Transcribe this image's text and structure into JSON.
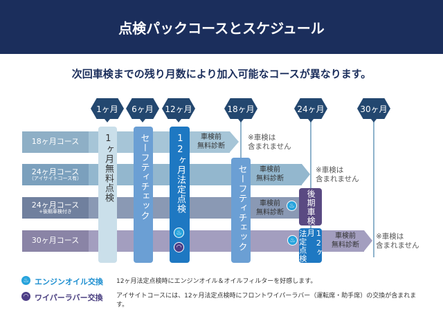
{
  "header": {
    "title": "点検パックコースとスケジュール"
  },
  "subtitle": "次回車検までの残り月数により加入可能なコースが異なります。",
  "months": [
    "1ヶ月",
    "6ヶ月",
    "12ヶ月",
    "18ヶ月",
    "24ヶ月",
    "30ヶ月"
  ],
  "courses": [
    {
      "label": "18ヶ月コース",
      "sub": ""
    },
    {
      "label": "24ヶ月コース",
      "sub": "（アイサイトコース有）"
    },
    {
      "label": "24ヶ月コース",
      "sub": "+後期車検付き"
    },
    {
      "label": "30ヶ月コース",
      "sub": ""
    }
  ],
  "columns": {
    "free1": "1ヶ月無料点検",
    "safety6": "セーフティチェック",
    "legal12": "12ヶ月法定点検",
    "safety18": "セーフティチェック",
    "late_inspection": "後期車検",
    "legal12_small_a": "法定点検",
    "legal12_small_b": "12ヶ月"
  },
  "diag": "車検前\n無料診断",
  "diag_line1": "車検前",
  "diag_line2": "無料診断",
  "note_line1": "※車検は",
  "note_line2": "含まれません",
  "legend": [
    {
      "icon": "oil-can-icon",
      "label": "エンジンオイル交換",
      "desc": "12ヶ月法定点検時にエンジンオイル＆オイルフィルターを好感します。",
      "color": "#1e8fd0"
    },
    {
      "icon": "wiper-icon",
      "label": "ワイパーラバー交換",
      "desc": "アイサイトコースには、12ヶ月法定点検時にフロントワイパーラバー（運転席・助手席）の交換が含まれます。",
      "color": "#4a3f80"
    }
  ],
  "colors": {
    "header": "#1b2e5c",
    "hex": "#23476f",
    "safety": "#6b9fd4",
    "legal": "#1e78c2",
    "late": "#5a4a82"
  }
}
